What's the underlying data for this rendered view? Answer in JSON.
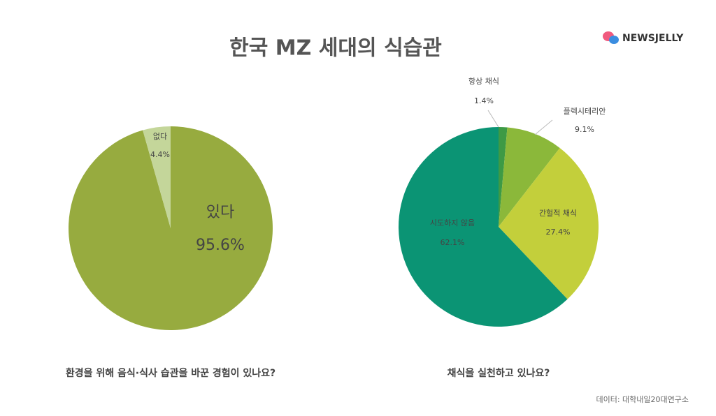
{
  "title": "한국 MZ 세대의 식습관",
  "logo": "NEWSJELLY",
  "source": "데이터: 대학내일20대연구소",
  "chart_data": [
    {
      "type": "pie",
      "title": "환경을 위해 음식·식사 습관을 바꾼 경험이 있나요?",
      "categories": [
        "있다",
        "없다"
      ],
      "values": [
        95.6,
        4.4
      ],
      "value_labels": [
        "95.6%",
        "4.4%"
      ],
      "colors": [
        "#97ab3f",
        "#c4d69a"
      ]
    },
    {
      "type": "pie",
      "title": "채식을 실천하고 있나요?",
      "categories": [
        "항상 채식",
        "플렉시테리안",
        "간헐적 채식",
        "시도하지 않음"
      ],
      "values": [
        1.4,
        9.1,
        27.4,
        62.1
      ],
      "value_labels": [
        "1.4%",
        "9.1%",
        "27.4%",
        "62.1%"
      ],
      "colors": [
        "#3d9a45",
        "#8bb83a",
        "#c3cf3b",
        "#0b9474"
      ]
    }
  ]
}
